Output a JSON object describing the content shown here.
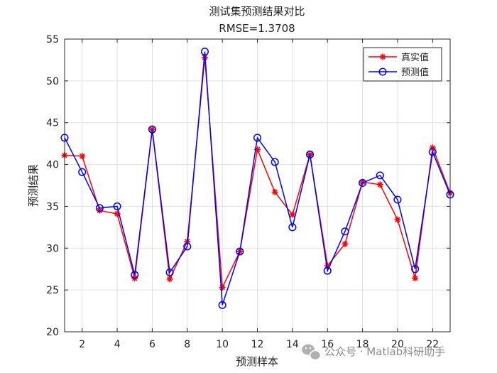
{
  "chart_data": {
    "type": "line",
    "title": "测试集预测结果对比",
    "subtitle": "RMSE=1.3708",
    "xlabel": "预测样本",
    "ylabel": "预测结果",
    "xlim": [
      1,
      23
    ],
    "ylim": [
      20,
      55
    ],
    "x_ticks": [
      2,
      4,
      6,
      8,
      10,
      12,
      14,
      16,
      18,
      20,
      22
    ],
    "y_ticks": [
      20,
      25,
      30,
      35,
      40,
      45,
      50,
      55
    ],
    "grid": true,
    "legend_position": "top-right",
    "x": [
      1,
      2,
      3,
      4,
      5,
      6,
      7,
      8,
      9,
      10,
      11,
      12,
      13,
      14,
      15,
      16,
      17,
      18,
      19,
      20,
      21,
      22,
      23
    ],
    "series": [
      {
        "name": "真实值",
        "color": "#ff0000",
        "marker": "asterisk",
        "values": [
          41.1,
          41.0,
          34.5,
          34.1,
          26.4,
          44.2,
          26.3,
          30.8,
          52.8,
          25.3,
          29.6,
          41.8,
          36.7,
          34.0,
          41.2,
          27.9,
          30.5,
          37.9,
          37.6,
          33.4,
          26.4,
          42.0,
          36.6
        ]
      },
      {
        "name": "预测值",
        "color": "#0000ff",
        "marker": "circle",
        "values": [
          43.2,
          39.1,
          34.8,
          35.0,
          26.8,
          44.2,
          27.1,
          30.2,
          53.5,
          23.2,
          29.6,
          43.2,
          40.3,
          32.5,
          41.2,
          27.3,
          32.0,
          37.8,
          38.7,
          35.8,
          27.5,
          41.5,
          36.4
        ]
      }
    ]
  },
  "watermark": {
    "icon": "wechat-icon",
    "text": "公众号 · Matlab科研助手"
  }
}
